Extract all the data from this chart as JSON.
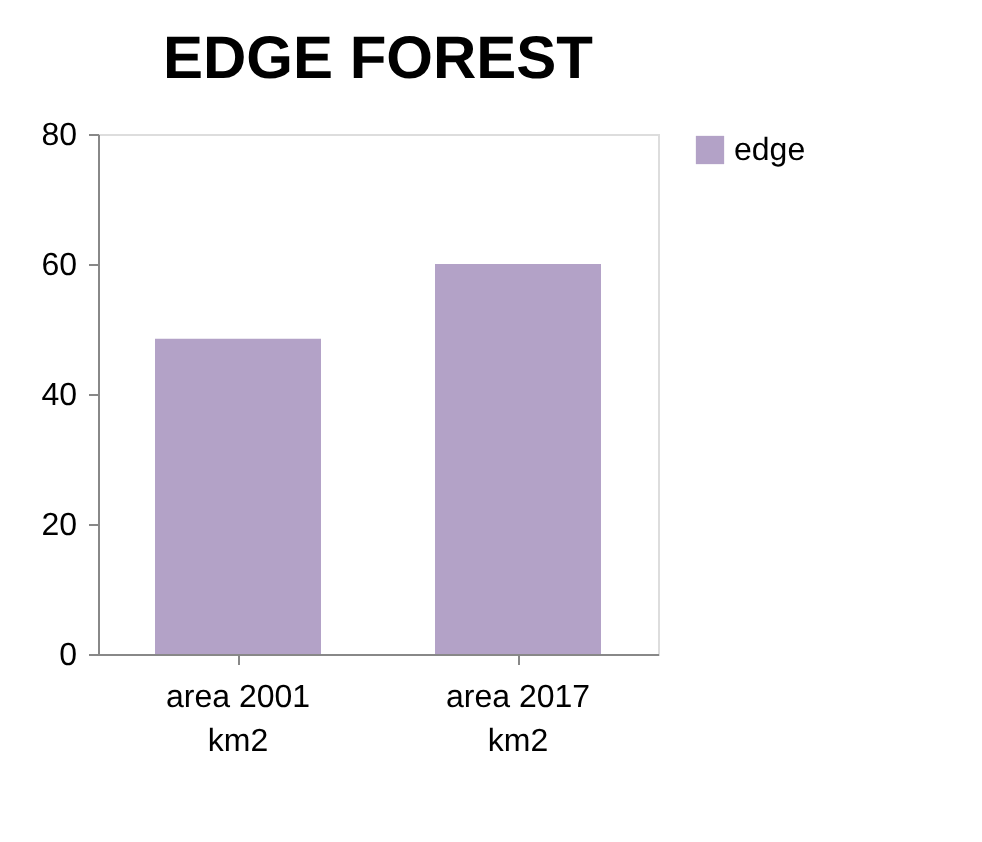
{
  "chart_data": {
    "type": "bar",
    "title": "EDGE  FOREST",
    "categories": [
      "area 2001 km2",
      "area 2017 km2"
    ],
    "series": [
      {
        "name": "edge",
        "color": "#b3a2c7",
        "values": [
          48.5,
          60
        ]
      }
    ],
    "ylim": [
      0,
      80
    ],
    "yticks": [
      0,
      20,
      40,
      60,
      80
    ],
    "grid": false,
    "legend": "right"
  }
}
